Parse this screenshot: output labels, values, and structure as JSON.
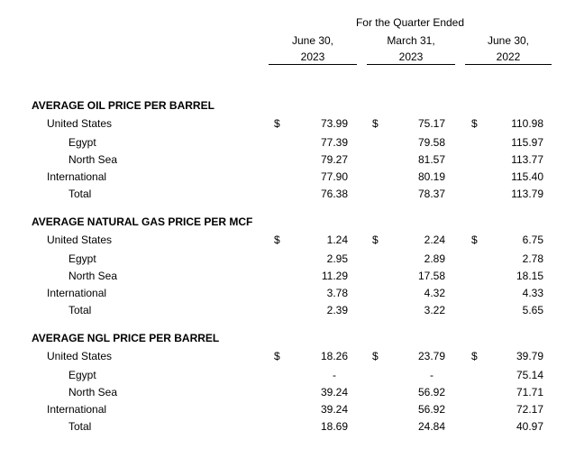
{
  "header": {
    "period_title": "For the Quarter Ended",
    "columns": [
      {
        "line1": "June 30,",
        "line2": "2023"
      },
      {
        "line1": "March 31,",
        "line2": "2023"
      },
      {
        "line1": "June 30,",
        "line2": "2022"
      }
    ]
  },
  "currency_symbol": "$",
  "sections": [
    {
      "title": "AVERAGE OIL PRICE PER BARREL",
      "rows": [
        {
          "label": "United States",
          "values": [
            "73.99",
            "75.17",
            "110.98"
          ]
        },
        {
          "label": "Egypt",
          "values": [
            "77.39",
            "79.58",
            "115.97"
          ]
        },
        {
          "label": "North Sea",
          "values": [
            "79.27",
            "81.57",
            "113.77"
          ]
        },
        {
          "label": "International",
          "values": [
            "77.90",
            "80.19",
            "115.40"
          ]
        },
        {
          "label": "Total",
          "values": [
            "76.38",
            "78.37",
            "113.79"
          ]
        }
      ]
    },
    {
      "title": "AVERAGE NATURAL GAS PRICE PER MCF",
      "rows": [
        {
          "label": "United States",
          "values": [
            "1.24",
            "2.24",
            "6.75"
          ]
        },
        {
          "label": "Egypt",
          "values": [
            "2.95",
            "2.89",
            "2.78"
          ]
        },
        {
          "label": "North Sea",
          "values": [
            "11.29",
            "17.58",
            "18.15"
          ]
        },
        {
          "label": "International",
          "values": [
            "3.78",
            "4.32",
            "4.33"
          ]
        },
        {
          "label": "Total",
          "values": [
            "2.39",
            "3.22",
            "5.65"
          ]
        }
      ]
    },
    {
      "title": "AVERAGE NGL PRICE PER BARREL",
      "rows": [
        {
          "label": "United States",
          "values": [
            "18.26",
            "23.79",
            "39.79"
          ]
        },
        {
          "label": "Egypt",
          "values": [
            "-",
            "-",
            "75.14"
          ]
        },
        {
          "label": "North Sea",
          "values": [
            "39.24",
            "56.92",
            "71.71"
          ]
        },
        {
          "label": "International",
          "values": [
            "39.24",
            "56.92",
            "72.17"
          ]
        },
        {
          "label": "Total",
          "values": [
            "18.69",
            "24.84",
            "40.97"
          ]
        }
      ]
    }
  ]
}
